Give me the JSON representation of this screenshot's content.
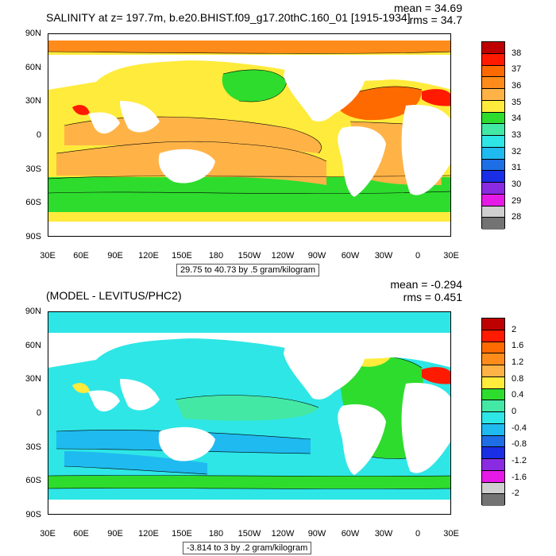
{
  "panel1": {
    "title": "SALINITY at z= 197.7m, b.e20.BHIST.f09_g17.20thC.160_01 [1915-1934]",
    "mean": "mean = 34.69",
    "rms": "rms = 34.7",
    "range": "29.75 to 40.73 by .5 gram/kilogram",
    "colorbar": {
      "labels": [
        "38",
        "37",
        "36",
        "35",
        "34",
        "33",
        "32",
        "31",
        "30",
        "29",
        "28"
      ],
      "colors": [
        "#bf0000",
        "#ff1a00",
        "#ff6a00",
        "#ff8c1a",
        "#ffb347",
        "#ffeb3b",
        "#2edc2e",
        "#43e8a4",
        "#2ee6e6",
        "#1fbaf0",
        "#1e6ee6",
        "#1a2ee6",
        "#8a2be2",
        "#e61ae6",
        "#cfcfcf",
        "#737373"
      ]
    },
    "fill": {
      "tropics": "#ffb347",
      "subpolar": "#ffeb3b",
      "southern": "#2edc2e",
      "atlantic": "#ff6a00",
      "med": "#ff1a00",
      "arctic": "#ff8c1a",
      "npac": "#2edc2e"
    }
  },
  "panel2": {
    "title": "(MODEL - LEVITUS/PHC2)",
    "mean": "mean = -0.294",
    "rms": "rms = 0.451",
    "range": "-3.814 to 3 by .2 gram/kilogram",
    "colorbar": {
      "labels": [
        "2",
        "1.6",
        "1.2",
        "0.8",
        "0.4",
        "0",
        "-0.4",
        "-0.8",
        "-1.2",
        "-1.6",
        "-2"
      ],
      "colors": [
        "#bf0000",
        "#ff1a00",
        "#ff6a00",
        "#ff8c1a",
        "#ffb347",
        "#ffeb3b",
        "#2edc2e",
        "#43e8a4",
        "#2ee6e6",
        "#1fbaf0",
        "#1e6ee6",
        "#1a2ee6",
        "#8a2be2",
        "#e61ae6",
        "#cfcfcf",
        "#737373"
      ]
    },
    "fill": {
      "base": "#2ee6e6",
      "pale": "#43e8a4",
      "deep": "#1fbaf0",
      "atlantic": "#2edc2e",
      "hot": "#ffeb3b",
      "med": "#ff1a00"
    }
  },
  "lat_labels": [
    "90N",
    "60N",
    "30N",
    "0",
    "30S",
    "60S",
    "90S"
  ],
  "lon_labels": [
    "30E",
    "60E",
    "90E",
    "120E",
    "150E",
    "180",
    "150W",
    "120W",
    "90W",
    "60W",
    "30W",
    "0",
    "30E"
  ]
}
